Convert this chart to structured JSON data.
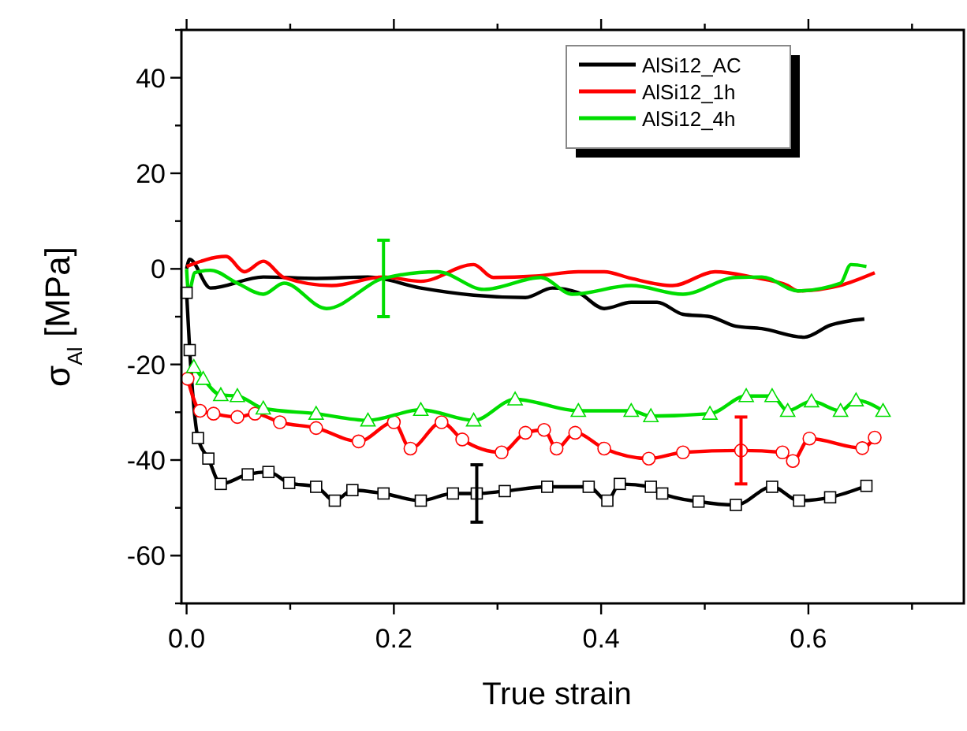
{
  "chart_data": {
    "type": "line",
    "xlabel": "True strain",
    "ylabel": "σ$_{Al}$ [MPa]",
    "xlim": [
      -0.005,
      0.75
    ],
    "ylim": [
      -70,
      50
    ],
    "xticks": [
      {
        "value": 0,
        "label": "0.0"
      },
      {
        "value": 0.1,
        "label": null
      },
      {
        "value": 0.2,
        "label": "0.2"
      },
      {
        "value": 0.3,
        "label": null
      },
      {
        "value": 0.4,
        "label": "0.4"
      },
      {
        "value": 0.5,
        "label": null
      },
      {
        "value": 0.6,
        "label": "0.6"
      },
      {
        "value": 0.7,
        "label": null
      }
    ],
    "yticks": [
      {
        "value": -70,
        "label": null
      },
      -60,
      {
        "value": -50,
        "label": null
      },
      -40,
      {
        "value": -30,
        "label": null
      },
      -20,
      {
        "value": -10,
        "label": null
      },
      0,
      {
        "value": 10,
        "label": null
      },
      20,
      {
        "value": 30,
        "label": null
      },
      40,
      {
        "value": 50,
        "label": null
      }
    ],
    "grid": false,
    "legend": "top right",
    "series": [
      {
        "name": "AlSi12_AC",
        "color": "#000000",
        "marker": "none",
        "x": [
          0,
          0.003,
          0.023,
          0.074,
          0.125,
          0.175,
          0.226,
          0.277,
          0.327,
          0.353,
          0.378,
          0.403,
          0.429,
          0.454,
          0.479,
          0.505,
          0.53,
          0.555,
          0.596,
          0.621,
          0.654
        ],
        "values": [
          0,
          2,
          -4,
          -1.7,
          -2,
          -1.7,
          -4,
          -5.5,
          -6,
          -4,
          -5,
          -8.3,
          -7,
          -7,
          -9.5,
          -10,
          -12,
          -12.5,
          -14.3,
          -11.8,
          -10.5
        ]
      },
      {
        "name": "AlSi12_1h",
        "color": "#ff0000",
        "marker": "none",
        "x": [
          0,
          0.038,
          0.056,
          0.074,
          0.094,
          0.14,
          0.19,
          0.226,
          0.277,
          0.296,
          0.337,
          0.378,
          0.403,
          0.429,
          0.469,
          0.51,
          0.545,
          0.58,
          0.59,
          0.63,
          0.664
        ],
        "values": [
          0.5,
          2.6,
          -0.6,
          1.6,
          -1.8,
          -3.5,
          -1.7,
          -2.6,
          0.9,
          -1.8,
          -1.5,
          -0.6,
          -0.6,
          -2,
          -3.5,
          -0.6,
          -1.7,
          -3.5,
          -4.6,
          -3.5,
          -0.8
        ]
      },
      {
        "name": "AlSi12_4h",
        "color": "#00dd00",
        "marker": "none",
        "x": [
          0,
          0.002,
          0.008,
          0.023,
          0.049,
          0.074,
          0.094,
          0.135,
          0.19,
          0.242,
          0.287,
          0.342,
          0.372,
          0.429,
          0.479,
          0.53,
          0.555,
          0.59,
          0.631,
          0.641,
          0.656
        ],
        "values": [
          0,
          -5,
          -0.8,
          -0.3,
          -3,
          -5.3,
          -3,
          -8.3,
          -2,
          -0.6,
          -4.3,
          -1.8,
          -5.3,
          -3.5,
          -5.3,
          -1.8,
          -1.7,
          -4.6,
          -3,
          0.9,
          0.5
        ],
        "errors": [
          null,
          null,
          null,
          null,
          null,
          null,
          null,
          null,
          8,
          null,
          null,
          null,
          null,
          null,
          null,
          null,
          null,
          null,
          null,
          null,
          null
        ]
      },
      {
        "color": "#000000",
        "marker": "square",
        "x": [
          0,
          0.003,
          0.011,
          0.021,
          0.033,
          0.059,
          0.079,
          0.099,
          0.125,
          0.143,
          0.16,
          0.19,
          0.226,
          0.257,
          0.28,
          0.307,
          0.348,
          0.388,
          0.406,
          0.418,
          0.448,
          0.459,
          0.494,
          0.53,
          0.565,
          0.591,
          0.621,
          0.656
        ],
        "values": [
          -5,
          -17,
          -35.4,
          -39.7,
          -45,
          -43,
          -42.5,
          -44.8,
          -45.6,
          -48.5,
          -46.3,
          -47,
          -48.5,
          -47,
          -47,
          -46.5,
          -45.6,
          -45.6,
          -48.5,
          -45,
          -45.6,
          -47,
          -48.7,
          -49.4,
          -45.6,
          -48.5,
          -47.8,
          -45.4
        ],
        "errors": [
          null,
          null,
          null,
          null,
          null,
          null,
          null,
          null,
          null,
          null,
          null,
          null,
          null,
          null,
          6,
          null,
          null,
          null,
          null,
          null,
          null,
          null,
          null,
          null,
          null,
          null,
          null,
          null
        ]
      },
      {
        "color": "#ff0000",
        "marker": "circle",
        "x": [
          0.001,
          0.013,
          0.026,
          0.049,
          0.066,
          0.09,
          0.125,
          0.166,
          0.2,
          0.216,
          0.246,
          0.266,
          0.304,
          0.327,
          0.345,
          0.357,
          0.375,
          0.403,
          0.446,
          0.479,
          0.535,
          0.575,
          0.585,
          0.601,
          0.652,
          0.664
        ],
        "values": [
          -23,
          -29.7,
          -30.3,
          -31,
          -30.3,
          -32.1,
          -33.3,
          -36.1,
          -32.1,
          -37.6,
          -32.1,
          -35.7,
          -38.4,
          -34.3,
          -33.7,
          -37.6,
          -34.3,
          -37.6,
          -39.7,
          -38.4,
          -38,
          -38.4,
          -40.2,
          -35.5,
          -37.5,
          -35.3
        ],
        "errors": [
          null,
          null,
          null,
          null,
          null,
          null,
          null,
          null,
          null,
          null,
          null,
          null,
          null,
          null,
          null,
          null,
          null,
          null,
          null,
          null,
          7,
          null,
          null,
          null,
          null,
          null
        ]
      },
      {
        "color": "#00dd00",
        "marker": "triangle",
        "x": [
          0.007,
          0.016,
          0.033,
          0.049,
          0.074,
          0.125,
          0.175,
          0.226,
          0.277,
          0.317,
          0.378,
          0.429,
          0.448,
          0.505,
          0.54,
          0.565,
          0.58,
          0.603,
          0.631,
          0.646,
          0.672
        ],
        "values": [
          -20.5,
          -23,
          -26.4,
          -26.6,
          -29.2,
          -30.3,
          -31.7,
          -29.5,
          -31.7,
          -27.3,
          -29.7,
          -29.7,
          -30.8,
          -30.3,
          -26.6,
          -26.6,
          -29.7,
          -27.7,
          -29.7,
          -27.5,
          -29.7
        ]
      }
    ]
  }
}
